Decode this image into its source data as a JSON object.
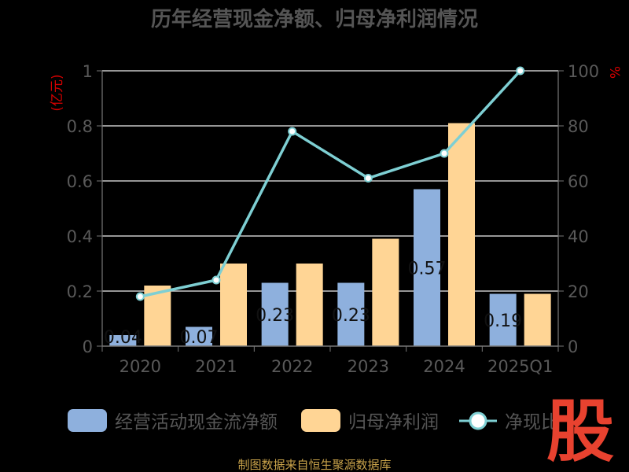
{
  "chart_data": {
    "type": "bar",
    "title": "历年经营现金净额、归母净利润情况",
    "categories": [
      "2020",
      "2021",
      "2022",
      "2023",
      "2024",
      "2025Q1"
    ],
    "series": [
      {
        "name": "经营活动现金流净额",
        "axis": "left",
        "type": "bar",
        "color": "#8eb0dd",
        "values": [
          0.04,
          0.07,
          0.23,
          0.23,
          0.57,
          0.19
        ],
        "labels": [
          "0.04",
          "0.07",
          "0.23",
          "0.23",
          "0.57",
          "0.19"
        ]
      },
      {
        "name": "归母净利润",
        "axis": "left",
        "type": "bar",
        "color": "#ffd595",
        "values": [
          0.22,
          0.3,
          0.3,
          0.39,
          0.81,
          0.19
        ]
      },
      {
        "name": "净现比",
        "axis": "right",
        "type": "line",
        "color": "#7ecfd3",
        "values": [
          18,
          24,
          78,
          61,
          70,
          100
        ]
      }
    ],
    "left_axis": {
      "unit": "(亿元)",
      "ylim": [
        0,
        1
      ],
      "ticks": [
        "0",
        "0.2",
        "0.4",
        "0.6",
        "0.8",
        "1"
      ]
    },
    "right_axis": {
      "unit": "%",
      "ylim": [
        0,
        100
      ],
      "ticks": [
        "0",
        "20",
        "40",
        "60",
        "80",
        "100"
      ]
    },
    "grid": true,
    "legend_position": "bottom"
  },
  "legend": [
    {
      "label": "经营活动现金流净额",
      "type": "bar",
      "color": "#8eb0dd"
    },
    {
      "label": "归母净利润",
      "type": "bar",
      "color": "#ffd595"
    },
    {
      "label": "净现比",
      "type": "line",
      "color": "#7ecfd3"
    }
  ],
  "source": "制图数据来自恒生聚源数据库",
  "watermark": "股"
}
